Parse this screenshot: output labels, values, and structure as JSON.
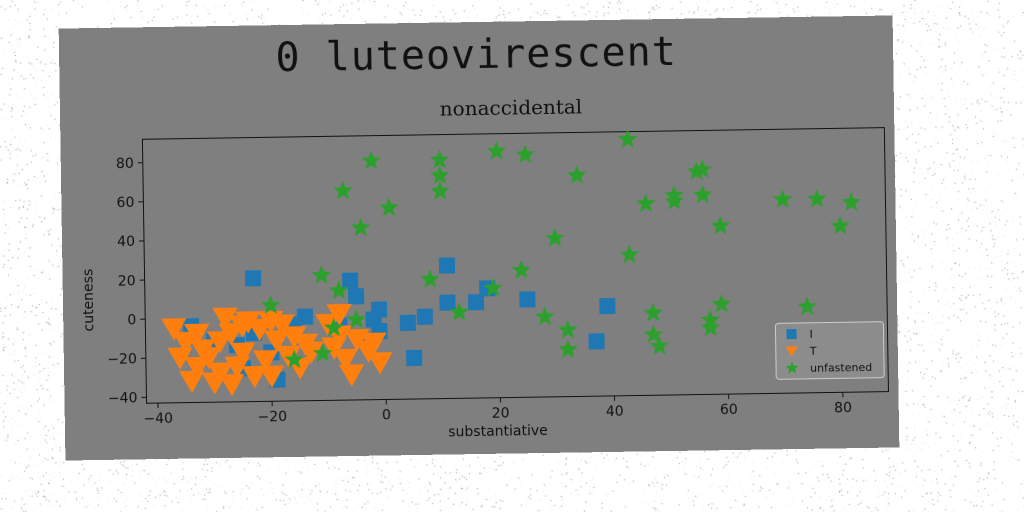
{
  "figure": {
    "suptitle": "0 luteovirescent",
    "background_color": "#7f7f7f",
    "text_color": "#111111"
  },
  "chart_data": {
    "type": "scatter",
    "title": "nonaccidental",
    "xlabel": "substantiative",
    "ylabel": "cuteness",
    "xlim": [
      -42,
      88
    ],
    "ylim": [
      -43,
      92
    ],
    "xticks": [
      -40,
      -20,
      0,
      20,
      40,
      60,
      80
    ],
    "yticks": [
      -40,
      -20,
      0,
      20,
      40,
      60,
      80
    ],
    "grid": false,
    "legend_position": "lower-right",
    "series": [
      {
        "name": "I",
        "marker": "square",
        "color": "#1f77b4",
        "points": [
          [
            -23,
            20
          ],
          [
            -6,
            18
          ],
          [
            -5,
            10
          ],
          [
            11,
            25
          ],
          [
            -1,
            3
          ],
          [
            -2,
            -2
          ],
          [
            -1,
            -8
          ],
          [
            4,
            -4
          ],
          [
            7,
            -1
          ],
          [
            11,
            6
          ],
          [
            16,
            6
          ],
          [
            18,
            13
          ],
          [
            25,
            7
          ],
          [
            5,
            -22
          ],
          [
            -14,
            0
          ],
          [
            -34,
            -4
          ],
          [
            -30,
            -12
          ],
          [
            -26,
            -14
          ],
          [
            -23,
            -8
          ],
          [
            -20,
            -18
          ],
          [
            -19,
            -32
          ],
          [
            -8,
            -5
          ],
          [
            -25,
            -26
          ],
          [
            37,
            -15
          ],
          [
            39,
            3
          ],
          [
            -16,
            -4
          ]
        ]
      },
      {
        "name": "T",
        "marker": "triangle-down",
        "color": "#ff7f0e",
        "points": [
          [
            -37,
            -5
          ],
          [
            -35,
            -12
          ],
          [
            -33,
            -8
          ],
          [
            -31,
            -20
          ],
          [
            -29,
            -28
          ],
          [
            -27,
            -34
          ],
          [
            -25,
            -18
          ],
          [
            -23,
            -30
          ],
          [
            -21,
            -22
          ],
          [
            -19,
            -12
          ],
          [
            -18,
            -4
          ],
          [
            -28,
            0
          ],
          [
            -24,
            -2
          ],
          [
            -22,
            -6
          ],
          [
            -33,
            -25
          ],
          [
            -30,
            -33
          ],
          [
            -26,
            -25
          ],
          [
            -20,
            -30
          ],
          [
            -17,
            -20
          ],
          [
            -15,
            -26
          ],
          [
            -13,
            -18
          ],
          [
            -10,
            -4
          ],
          [
            -9,
            -16
          ],
          [
            -7,
            -22
          ],
          [
            -6,
            -30
          ],
          [
            -5,
            -12
          ],
          [
            -3,
            -18
          ],
          [
            -2,
            -14
          ],
          [
            -1,
            -24
          ],
          [
            -8,
            -10
          ],
          [
            -36,
            -20
          ],
          [
            -34,
            -32
          ],
          [
            -32,
            -16
          ],
          [
            -29,
            -12
          ],
          [
            -27,
            -8
          ],
          [
            -25,
            -4
          ],
          [
            -20,
            -2
          ],
          [
            -16,
            -10
          ],
          [
            -14,
            -14
          ],
          [
            -8,
            1
          ]
        ]
      },
      {
        "name": "unfastened",
        "marker": "star",
        "color": "#2ca02c",
        "points": [
          [
            -2,
            79
          ],
          [
            10,
            79
          ],
          [
            10,
            71
          ],
          [
            10,
            63
          ],
          [
            20,
            83
          ],
          [
            25,
            81
          ],
          [
            43,
            88
          ],
          [
            -7,
            64
          ],
          [
            1,
            55
          ],
          [
            -4,
            45
          ],
          [
            34,
            70
          ],
          [
            30,
            38
          ],
          [
            46,
            55
          ],
          [
            51,
            56
          ],
          [
            51,
            59
          ],
          [
            55,
            71
          ],
          [
            56,
            72
          ],
          [
            56,
            59
          ],
          [
            59,
            43
          ],
          [
            70,
            56
          ],
          [
            76,
            56
          ],
          [
            80,
            42
          ],
          [
            82,
            54
          ],
          [
            43,
            29
          ],
          [
            24,
            22
          ],
          [
            19,
            13
          ],
          [
            8,
            18
          ],
          [
            -11,
            21
          ],
          [
            -20,
            6
          ],
          [
            -8,
            13
          ],
          [
            13,
            1
          ],
          [
            28,
            -2
          ],
          [
            32,
            -9
          ],
          [
            32,
            -19
          ],
          [
            47,
            -1
          ],
          [
            47,
            -12
          ],
          [
            48,
            -18
          ],
          [
            57,
            -5
          ],
          [
            57,
            -9
          ],
          [
            59,
            3
          ],
          [
            74,
            1
          ],
          [
            -16,
            -22
          ],
          [
            -11,
            -19
          ],
          [
            -9,
            -6
          ],
          [
            -5,
            -2
          ]
        ]
      }
    ]
  }
}
